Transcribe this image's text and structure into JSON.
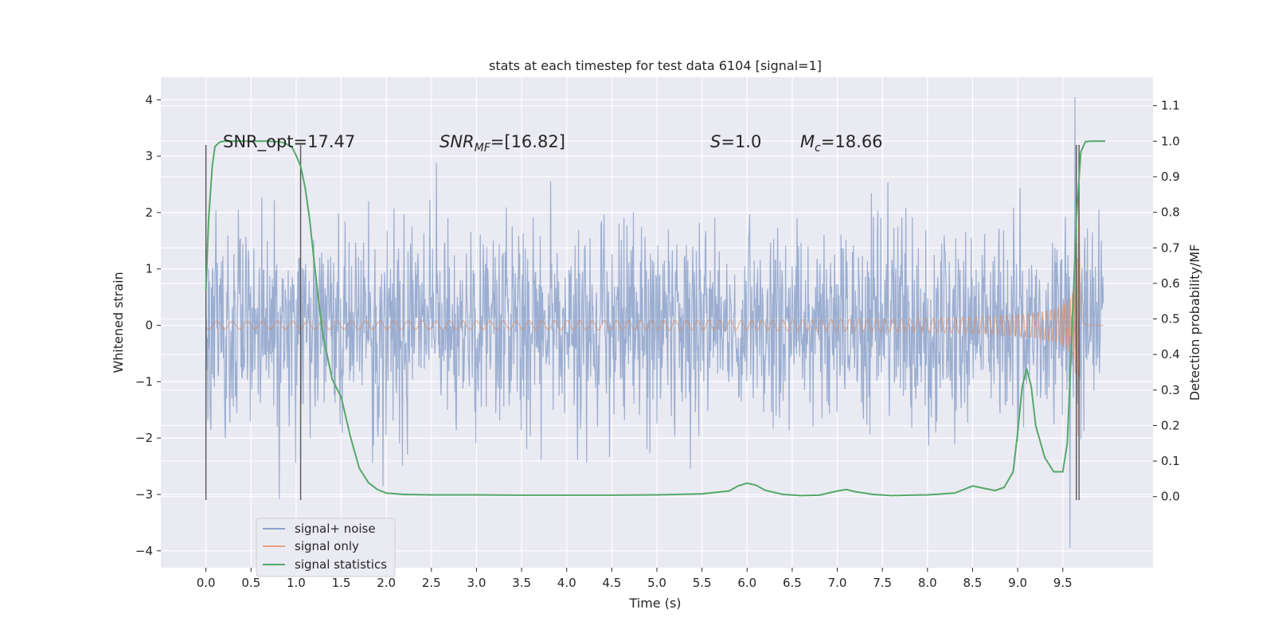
{
  "chart_data": {
    "type": "line",
    "title": "stats at each timestep for test data 6104 [signal=1]",
    "xlabel": "Time (s)",
    "ylabel_left": "Whitened strain",
    "ylabel_right": "Detection probability/MF",
    "xlim": [
      -0.5,
      10.5
    ],
    "ylim_left": [
      -4.3,
      4.4
    ],
    "ylim_right": [
      -0.2,
      1.18
    ],
    "x_ticks": [
      "0.0",
      "0.5",
      "1.0",
      "1.5",
      "2.0",
      "2.5",
      "3.0",
      "3.5",
      "4.0",
      "4.5",
      "5.0",
      "5.5",
      "6.0",
      "6.5",
      "7.0",
      "7.5",
      "8.0",
      "8.5",
      "9.0",
      "9.5"
    ],
    "y_left_ticks": [
      4,
      3,
      2,
      1,
      0,
      -1,
      -2,
      -3,
      -4
    ],
    "y_left_tick_labels": [
      "4",
      "3",
      "2",
      "1",
      "0",
      "−1",
      "−2",
      "−3",
      "−4"
    ],
    "y_right_ticks": [
      1.1,
      1.0,
      0.9,
      0.8,
      0.7,
      0.6,
      0.5,
      0.4,
      0.3,
      0.2,
      0.1,
      0.0
    ],
    "y_right_tick_labels": [
      "1.1",
      "1.0",
      "0.9",
      "0.8",
      "0.7",
      "0.6",
      "0.5",
      "0.4",
      "0.3",
      "0.2",
      "0.1",
      "0.0"
    ],
    "grid": true,
    "legend_position": "lower-left",
    "series": [
      {
        "name": "signal+ noise",
        "axis": "left",
        "color": "#4c72b0",
        "x_range": [
          0.0,
          9.95
        ],
        "envelope_max_y": 4.05,
        "envelope_min_y": -3.95
      },
      {
        "name": "signal only",
        "axis": "left",
        "color": "#dd8452",
        "chirp_peak_x": 9.68,
        "peak_amplitude": 2.9
      },
      {
        "name": "signal statistics",
        "axis": "right",
        "color": "#55a868",
        "x": [
          0.0,
          0.03,
          0.07,
          0.1,
          0.15,
          0.2,
          0.3,
          0.5,
          0.7,
          0.85,
          0.95,
          1.0,
          1.05,
          1.1,
          1.15,
          1.2,
          1.25,
          1.3,
          1.35,
          1.4,
          1.5,
          1.6,
          1.7,
          1.8,
          1.9,
          2.0,
          2.2,
          2.5,
          3.0,
          3.5,
          4.0,
          4.5,
          5.0,
          5.5,
          5.8,
          5.9,
          6.0,
          6.1,
          6.2,
          6.4,
          6.6,
          6.8,
          7.0,
          7.1,
          7.2,
          7.4,
          7.6,
          8.0,
          8.3,
          8.5,
          8.6,
          8.75,
          8.85,
          8.95,
          9.0,
          9.05,
          9.1,
          9.15,
          9.2,
          9.3,
          9.4,
          9.5,
          9.55,
          9.6,
          9.65,
          9.7,
          9.75,
          9.8,
          9.9,
          9.97
        ],
        "y": [
          0.58,
          0.78,
          0.93,
          0.985,
          0.997,
          1.0,
          1.0,
          1.0,
          1.0,
          0.997,
          0.985,
          0.96,
          0.93,
          0.87,
          0.78,
          0.66,
          0.55,
          0.45,
          0.39,
          0.33,
          0.28,
          0.17,
          0.08,
          0.04,
          0.02,
          0.01,
          0.006,
          0.005,
          0.005,
          0.004,
          0.004,
          0.004,
          0.005,
          0.008,
          0.016,
          0.03,
          0.038,
          0.032,
          0.018,
          0.006,
          0.003,
          0.004,
          0.016,
          0.02,
          0.014,
          0.006,
          0.003,
          0.005,
          0.01,
          0.03,
          0.025,
          0.017,
          0.026,
          0.07,
          0.18,
          0.31,
          0.36,
          0.31,
          0.2,
          0.11,
          0.07,
          0.07,
          0.15,
          0.45,
          0.78,
          0.97,
          0.998,
          1.0,
          1.0,
          1.0
        ]
      }
    ],
    "vertical_lines_x": [
      0.0,
      1.05,
      9.65,
      9.68
    ],
    "vertical_lines_range": [
      -3.1,
      3.2
    ],
    "annotations": [
      {
        "text": "SNR_opt=17.47",
        "x": 0.2,
        "y": 3.3
      },
      {
        "text": "SNR_MF=[16.82]",
        "x": 2.6,
        "y": 3.3
      },
      {
        "text": "S=1.0",
        "x": 5.6,
        "y": 3.3
      },
      {
        "text": "M_c=18.66",
        "x": 6.6,
        "y": 3.3
      }
    ]
  },
  "colors": {
    "plot_background": "#eaeaf2",
    "grid": "#ffffff",
    "vertical_lines": "#555555"
  }
}
